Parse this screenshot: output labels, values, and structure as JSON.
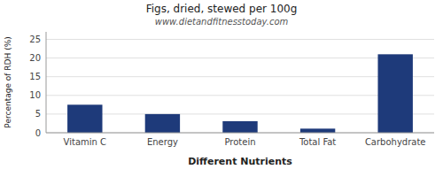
{
  "chart_data": {
    "type": "bar",
    "title": "Figs, dried, stewed per 100g",
    "subtitle": "www.dietandfitnesstoday.com",
    "xlabel": "Different Nutrients",
    "ylabel": "Percentage of RDH (%)",
    "categories": [
      "Vitamin C",
      "Energy",
      "Protein",
      "Total Fat",
      "Carbohydrate"
    ],
    "values": [
      7.5,
      5.0,
      3.1,
      1.1,
      21.0
    ],
    "color": "#1e3a7a",
    "ylim": [
      0,
      27
    ],
    "yticks": [
      0,
      5,
      10,
      15,
      20,
      25
    ],
    "grid": true
  }
}
